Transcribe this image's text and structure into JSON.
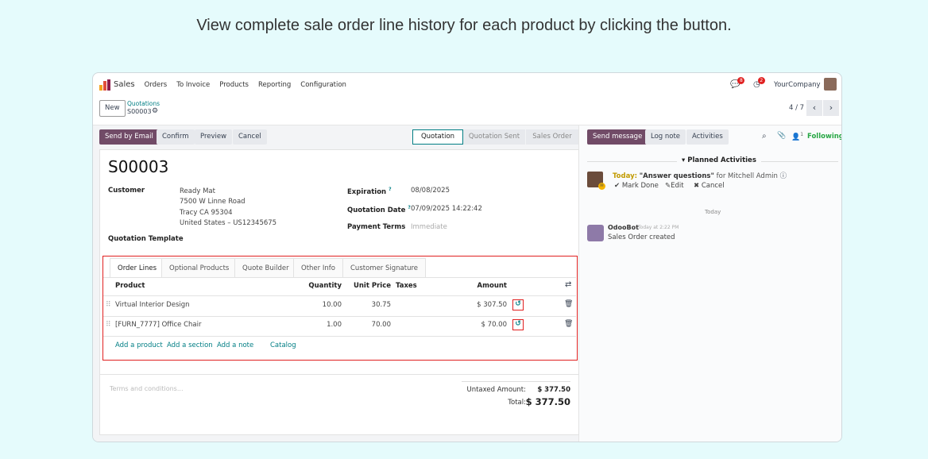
{
  "caption": "View complete sale order line history for each product by clicking the button.",
  "nav": {
    "app": "Sales",
    "items": [
      "Orders",
      "To Invoice",
      "Products",
      "Reporting",
      "Configuration"
    ],
    "messages_count": "8",
    "activities_count": "2",
    "company": "YourCompany"
  },
  "control": {
    "new": "New",
    "breadcrumb": "Quotations",
    "record": "S00003",
    "pager": "4 / 7"
  },
  "actions": {
    "send_email": "Send by Email",
    "confirm": "Confirm",
    "preview": "Preview",
    "cancel": "Cancel"
  },
  "status": {
    "steps": [
      "Quotation",
      "Quotation Sent",
      "Sales Order"
    ],
    "active": "Quotation"
  },
  "form": {
    "title": "S00003",
    "customer_label": "Customer",
    "customer": [
      "Ready Mat",
      "7500 W Linne Road",
      "Tracy CA 95304",
      "United States – US12345675"
    ],
    "template_label": "Quotation Template",
    "expiration_label": "Expiration",
    "expiration": "08/08/2025",
    "qdate_label": "Quotation Date",
    "qdate": "07/09/2025 14:22:42",
    "terms_label": "Payment Terms",
    "terms": "Immediate",
    "help": "?"
  },
  "tabs": [
    "Order Lines",
    "Optional Products",
    "Quote Builder",
    "Other Info",
    "Customer Signature"
  ],
  "lines": {
    "headers": [
      "Product",
      "Quantity",
      "Unit Price",
      "Taxes",
      "Amount"
    ],
    "rows": [
      {
        "product": "Virtual Interior Design",
        "qty": "10.00",
        "price": "30.75",
        "taxes": "",
        "amount": "$ 307.50"
      },
      {
        "product": "[FURN_7777] Office Chair",
        "qty": "1.00",
        "price": "70.00",
        "taxes": "",
        "amount": "$ 70.00"
      }
    ],
    "add": [
      "Add a product",
      "Add a section",
      "Add a note",
      "Catalog"
    ]
  },
  "totals": {
    "terms_placeholder": "Terms and conditions...",
    "untaxed_label": "Untaxed Amount:",
    "untaxed": "$ 377.50",
    "total_label": "Total:",
    "total": "$ 377.50"
  },
  "chatter": {
    "send": "Send message",
    "log": "Log note",
    "activities": "Activities",
    "followers": "1",
    "following": "Following",
    "planned": "Planned Activities",
    "today_label": "Today:",
    "activity": "\"Answer questions\"",
    "for": "for Mitchell Admin",
    "mark_done": "Mark Done",
    "edit": "Edit",
    "cancel": "Cancel",
    "day": "Today",
    "author": "OdooBot",
    "time": "Today at 2:22 PM",
    "message": "Sales Order created"
  },
  "colors": {
    "primary": "#714b67",
    "link": "#017e84",
    "highlight": "#e02020",
    "following": "#28a745"
  }
}
